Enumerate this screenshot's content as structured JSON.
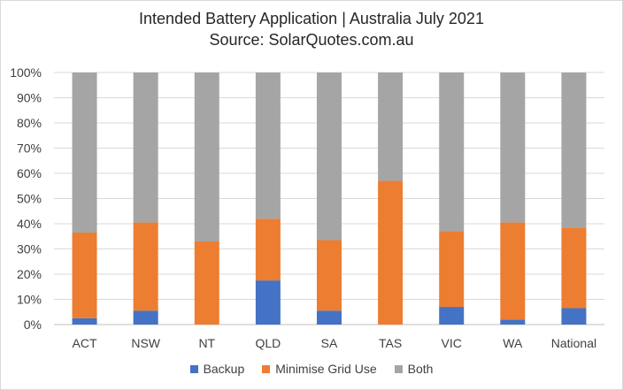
{
  "chart_data": {
    "type": "bar",
    "stacked": true,
    "title": "Intended Battery Application | Australia July 2021",
    "subtitle": "Source: SolarQuotes.com.au",
    "xlabel": "",
    "ylabel": "",
    "ylim": [
      0,
      100
    ],
    "y_ticks": [
      "0%",
      "10%",
      "20%",
      "30%",
      "40%",
      "50%",
      "60%",
      "70%",
      "80%",
      "90%",
      "100%"
    ],
    "categories": [
      "ACT",
      "NSW",
      "NT",
      "QLD",
      "SA",
      "TAS",
      "VIC",
      "WA",
      "National"
    ],
    "series": [
      {
        "name": "Backup",
        "color": "#4472c4",
        "values": [
          2.5,
          5.5,
          0,
          17.5,
          5.5,
          0,
          7,
          2,
          6.5
        ]
      },
      {
        "name": "Minimise Grid Use",
        "color": "#ed7d31",
        "values": [
          34,
          35,
          33,
          24.5,
          28,
          57,
          30,
          38.5,
          32
        ]
      },
      {
        "name": "Both",
        "color": "#a5a5a5",
        "values": [
          63.5,
          59.5,
          67,
          58,
          66.5,
          43,
          63,
          59.5,
          61.5
        ]
      }
    ],
    "grid": true,
    "legend_position": "bottom"
  }
}
